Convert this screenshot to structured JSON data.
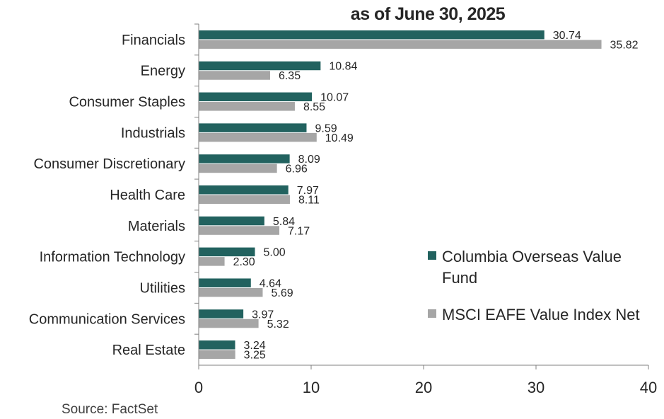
{
  "header": {
    "title": "as of June 30, 2025"
  },
  "footer": {
    "source": "Source: FactSet"
  },
  "colors": {
    "fund": "#22625F",
    "index": "#A6A6A6",
    "axis": "#808080"
  },
  "legend": [
    {
      "label": "Columbia Overseas Value Fund",
      "color": "#22625F"
    },
    {
      "label": "MSCI EAFE Value Index Net",
      "color": "#A6A6A6"
    }
  ],
  "chart_data": {
    "type": "bar",
    "orientation": "horizontal",
    "title": "as of June 30, 2025",
    "categories": [
      "Financials",
      "Energy",
      "Consumer Staples",
      "Industrials",
      "Consumer Discretionary",
      "Health Care",
      "Materials",
      "Information Technology",
      "Utilities",
      "Communication Services",
      "Real Estate"
    ],
    "series": [
      {
        "name": "Columbia Overseas Value Fund",
        "values": [
          30.74,
          10.84,
          10.07,
          9.59,
          8.09,
          7.97,
          5.84,
          5.0,
          4.64,
          3.97,
          3.24
        ]
      },
      {
        "name": "MSCI EAFE Value Index Net",
        "values": [
          35.82,
          6.35,
          8.55,
          10.49,
          6.96,
          8.11,
          7.17,
          2.3,
          5.69,
          5.32,
          3.25
        ]
      }
    ],
    "value_labels": [
      [
        "30.74",
        "10.84",
        "10.07",
        "9.59",
        "8.09",
        "7.97",
        "5.84",
        "5.00",
        "4.64",
        "3.97",
        "3.24"
      ],
      [
        "35.82",
        "6.35",
        "8.55",
        "10.49",
        "6.96",
        "8.11",
        "7.17",
        "2.30",
        "5.69",
        "5.32",
        "3.25"
      ]
    ],
    "xlim": [
      0,
      40
    ],
    "xticks": [
      "0",
      "10",
      "20",
      "30",
      "40"
    ],
    "grid": false,
    "legend_position": "bottom-right"
  }
}
